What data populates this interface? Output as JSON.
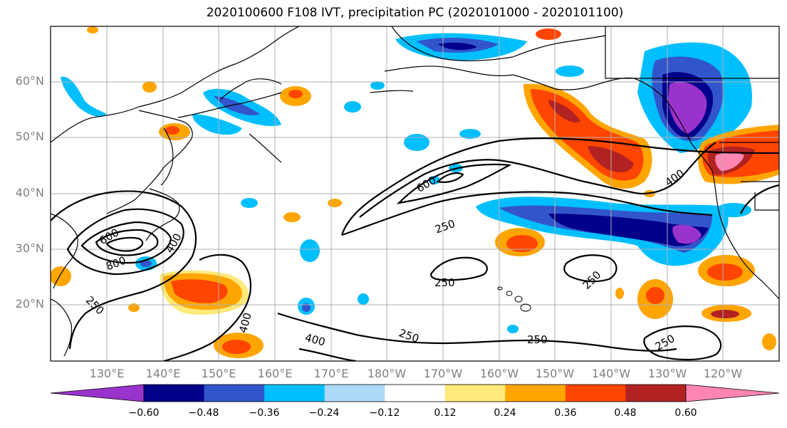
{
  "title": "2020100600 F108 IVT, precipitation PC (2020101000 - 2020101100)",
  "lat_labels": [
    "60°N",
    "50°N",
    "40°N",
    "30°N",
    "20°N"
  ],
  "lon_labels": [
    "130°E",
    "140°E",
    "150°E",
    "160°E",
    "170°E",
    "180°W",
    "170°W",
    "160°W",
    "150°W",
    "140°W",
    "130°W",
    "120°W"
  ],
  "colorbar": {
    "colors": [
      "#9933cc",
      "#00008b",
      "#3355cc",
      "#00bfff",
      "#add8f7",
      "#ffffff",
      "#ffe97a",
      "#ffa500",
      "#ff4500",
      "#b22222",
      "#ff85b3"
    ],
    "ticks": [
      "−0.60",
      "−0.48",
      "−0.36",
      "−0.24",
      "−0.12",
      "0.12",
      "0.24",
      "0.36",
      "0.48",
      "0.60"
    ]
  },
  "contour_labels": [
    "600",
    "250",
    "400",
    "250",
    "250",
    "250",
    "250",
    "400",
    "400",
    "250",
    "800",
    "600",
    "400",
    "250"
  ],
  "colors": {
    "negative_strong": "#9933cc",
    "negative": "#00bfff",
    "positive": "#ff4500",
    "positive_strong": "#b22222",
    "grid": "#b0b0b0",
    "axis_label": "#808080"
  }
}
